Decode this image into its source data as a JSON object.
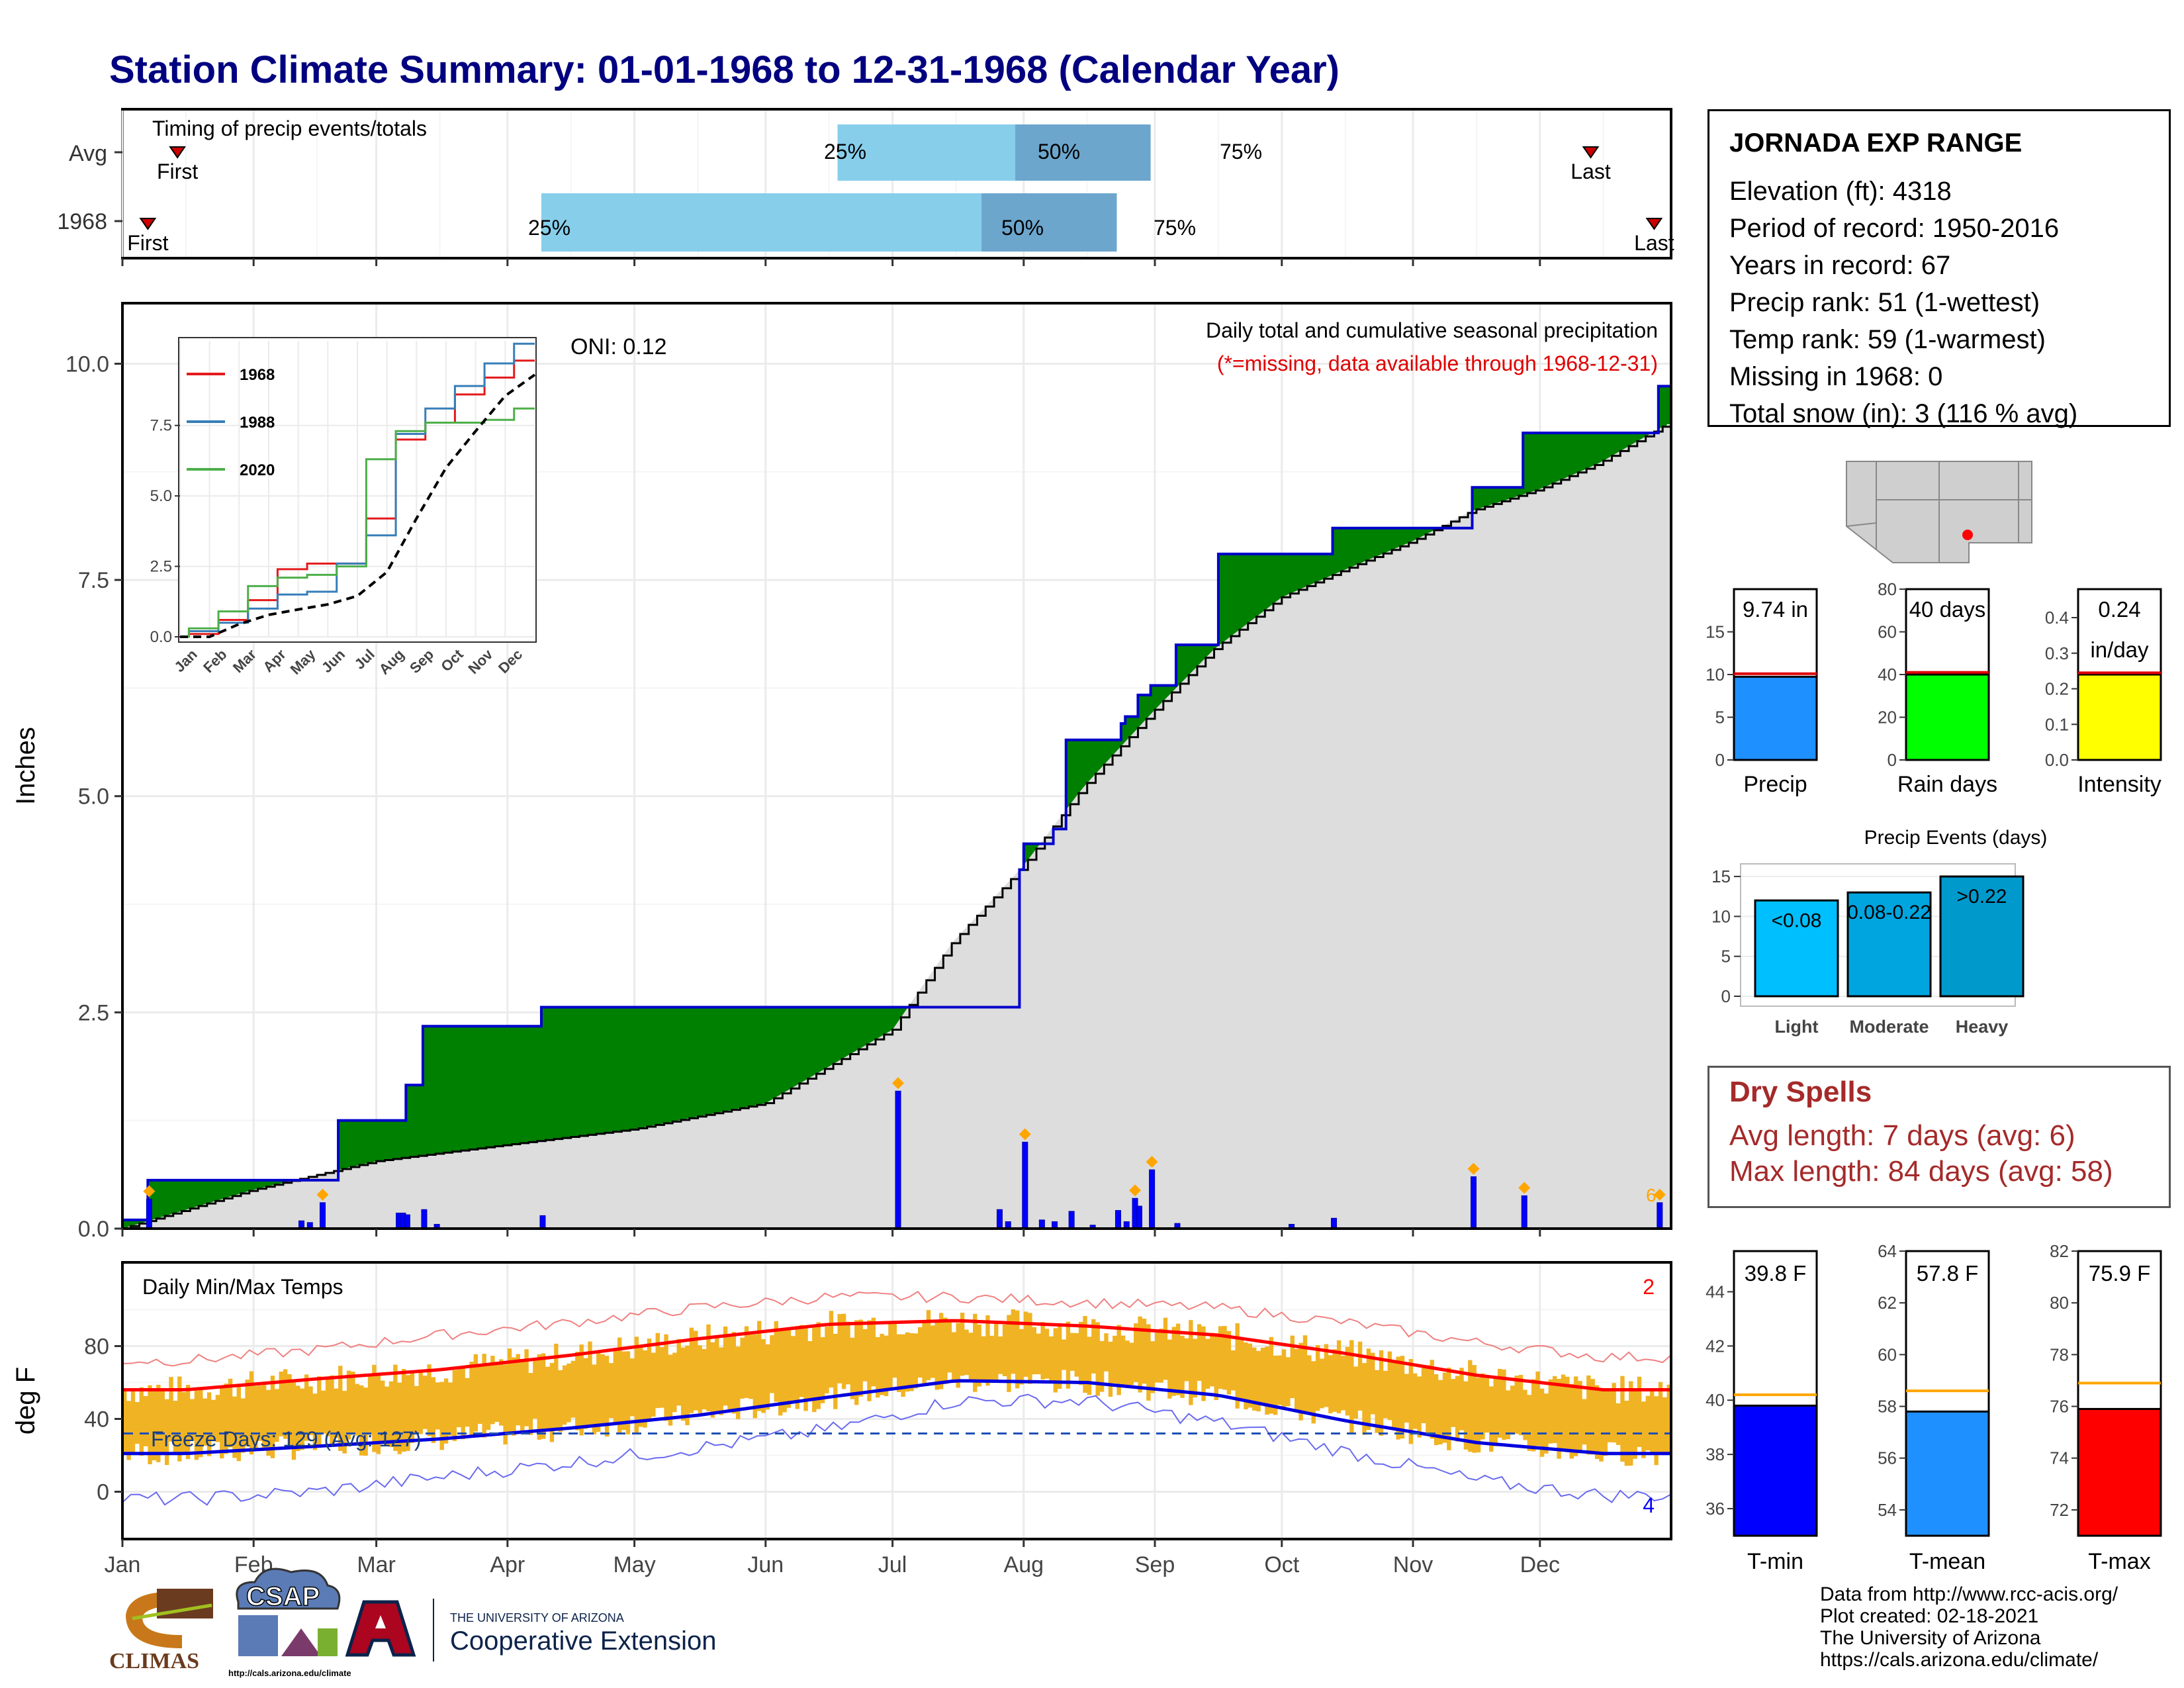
{
  "title": "Station Climate Summary: 01-01-1968 to 12-31-1968 (Calendar Year)",
  "months": [
    "Jan",
    "Feb",
    "Mar",
    "Apr",
    "May",
    "Jun",
    "Jul",
    "Aug",
    "Sep",
    "Oct",
    "Nov",
    "Dec"
  ],
  "timing": {
    "label": "Timing of precip events/totals",
    "rows": [
      "Avg",
      "1968"
    ],
    "first_label": "First",
    "last_label": "Last",
    "pct_labels": [
      "25%",
      "50%",
      "75%"
    ]
  },
  "precip_panel": {
    "ylabel": "Inches",
    "caption1": "Daily total and cumulative seasonal precipitation",
    "caption2": "(*=missing, data available through 1968-12-31)",
    "oni": "ONI: 0.12",
    "yticks": [
      "0.0",
      "2.5",
      "5.0",
      "7.5",
      "10.0"
    ],
    "corner_label": "6"
  },
  "inset": {
    "legend": [
      "1968",
      "1988",
      "2020"
    ],
    "yticks": [
      "0.0",
      "2.5",
      "5.0",
      "7.5"
    ],
    "months": [
      "Jan",
      "Feb",
      "Mar",
      "Apr",
      "May",
      "Jun",
      "Jul",
      "Aug",
      "Sep",
      "Oct",
      "Nov",
      "Dec"
    ]
  },
  "temp_panel": {
    "title": "Daily Min/Max Temps",
    "ylabel": "deg F",
    "yticks": [
      "0",
      "40",
      "80"
    ],
    "freeze": "Freeze Days: 129 (Avg: 127)",
    "count_hot": "2",
    "count_cold": "4"
  },
  "station": {
    "name": "JORNADA EXP RANGE",
    "lines": [
      "Elevation (ft): 4318",
      "Period of record: 1950-2016",
      "Years in record: 67",
      "Precip rank: 51 (1-wettest)",
      "Temp rank: 59 (1-warmest)",
      "Missing in 1968: 0",
      "Total snow (in): 3 (116 % avg)"
    ]
  },
  "summary_bars": [
    {
      "label": "Precip",
      "value_label": "9.74 in",
      "value": 9.74,
      "avg": 10.1,
      "ymax": 20,
      "yticks": [
        "0",
        "5",
        "10",
        "15"
      ],
      "tickvals": [
        0,
        5,
        10,
        15
      ],
      "color": "#1E90FF"
    },
    {
      "label": "Rain days",
      "value_label": "40 days",
      "value": 40,
      "avg": 41,
      "ymax": 80,
      "yticks": [
        "0",
        "20",
        "40",
        "60",
        "80"
      ],
      "tickvals": [
        0,
        20,
        40,
        60,
        80
      ],
      "color": "#00FF00"
    },
    {
      "label": "Intensity",
      "value_label": "0.24",
      "value_label2": "in/day",
      "value": 0.24,
      "avg": 0.245,
      "ymax": 0.48,
      "yticks": [
        "0.0",
        "0.1",
        "0.2",
        "0.3",
        "0.4"
      ],
      "tickvals": [
        0,
        0.1,
        0.2,
        0.3,
        0.4
      ],
      "color": "#FFFF00"
    }
  ],
  "events": {
    "title": "Precip Events (days)",
    "yticks": [
      "0",
      "5",
      "10",
      "15"
    ],
    "categories": [
      "Light",
      "Moderate",
      "Heavy"
    ],
    "labels": [
      "<0.08",
      "0.08-0.22",
      ">0.22"
    ],
    "values": [
      12,
      13,
      15
    ],
    "colors": [
      "#00BFFF",
      "#00A5E0",
      "#0099CC"
    ]
  },
  "dry_spells": {
    "title": "Dry Spells",
    "avg_length": "Avg length: 7 days (avg: 6)",
    "max_length": "Max length: 84 days (avg: 58)"
  },
  "temp_bars": [
    {
      "label": "T-min",
      "value_label": "39.8 F",
      "value": 39.8,
      "avg": 40.2,
      "ymin": 35,
      "ymax": 45.5,
      "yticks": [
        "36",
        "38",
        "40",
        "42",
        "44"
      ],
      "tickvals": [
        36,
        38,
        40,
        42,
        44
      ],
      "color": "#0000FF"
    },
    {
      "label": "T-mean",
      "value_label": "57.8 F",
      "value": 57.8,
      "avg": 58.6,
      "ymin": 53,
      "ymax": 64,
      "yticks": [
        "54",
        "56",
        "58",
        "60",
        "62",
        "64"
      ],
      "tickvals": [
        54,
        56,
        58,
        60,
        62,
        64
      ],
      "color": "#1E90FF"
    },
    {
      "label": "T-max",
      "value_label": "75.9 F",
      "value": 75.9,
      "avg": 76.9,
      "ymin": 71,
      "ymax": 82,
      "yticks": [
        "72",
        "74",
        "76",
        "78",
        "80",
        "82"
      ],
      "tickvals": [
        72,
        74,
        76,
        78,
        80,
        82
      ],
      "color": "#FF0000"
    }
  ],
  "footer": [
    "Data from http://www.rcc-acis.org/",
    "Plot created: 02-18-2021",
    "The University of Arizona",
    "https://cals.arizona.edu/climate/"
  ],
  "logos": {
    "climas": "CLIMAS",
    "csap": "CSAP",
    "csap_url": "http://cals.arizona.edu/climate",
    "ua_small": "THE UNIVERSITY OF ARIZONA",
    "ua_big": "Cooperative Extension"
  },
  "colors": {
    "title": "#000080",
    "green": "#008000",
    "brown": "#8B5A14",
    "gray": "#DDDDDD",
    "blue": "#0000FF",
    "orange": "#FFA500"
  },
  "chart_data": [
    {
      "type": "area",
      "title": "Daily total and cumulative seasonal precipitation",
      "ylabel": "Inches",
      "ylim": [
        0,
        10.7
      ],
      "series": [
        {
          "name": "1968",
          "x": [
            "01-01",
            "01-07",
            "02-12",
            "02-21",
            "03-06",
            "03-08",
            "03-12",
            "04-09",
            "07-02",
            "07-31",
            "08-01",
            "08-08",
            "08-11",
            "08-24",
            "08-25",
            "08-28",
            "08-31",
            "09-06",
            "09-16",
            "10-13",
            "11-15",
            "11-27",
            "12-29",
            "12-31"
          ],
          "values": [
            0.1,
            0.56,
            0.56,
            1.25,
            1.25,
            1.66,
            2.34,
            2.56,
            2.56,
            4.15,
            4.45,
            4.62,
            5.65,
            5.84,
            5.92,
            6.17,
            6.28,
            6.75,
            7.8,
            8.1,
            8.57,
            9.2,
            9.74,
            9.74
          ]
        },
        {
          "name": "average",
          "x": [
            "01-01",
            "02-01",
            "03-01",
            "04-01",
            "05-01",
            "06-01",
            "07-01",
            "07-15",
            "08-01",
            "08-15",
            "09-01",
            "09-15",
            "10-01",
            "10-15",
            "11-01",
            "11-15",
            "12-01",
            "12-15",
            "12-31"
          ],
          "values": [
            0,
            0.45,
            0.78,
            0.97,
            1.15,
            1.45,
            2.3,
            3.3,
            4.2,
            5.1,
            6.0,
            6.7,
            7.3,
            7.6,
            7.95,
            8.3,
            8.55,
            8.85,
            9.3
          ]
        }
      ],
      "daily_precip": {
        "x": [
          "01-07",
          "02-12",
          "02-14",
          "02-17",
          "03-06",
          "03-07",
          "03-08",
          "03-12",
          "03-15",
          "04-09",
          "07-02",
          "07-26",
          "07-28",
          "08-01",
          "08-05",
          "08-08",
          "08-12",
          "08-17",
          "08-23",
          "08-25",
          "08-27",
          "08-28",
          "08-31",
          "09-06",
          "10-03",
          "10-13",
          "11-15",
          "11-27",
          "12-29"
        ],
        "values": [
          0.34,
          0.09,
          0.07,
          0.3,
          0.18,
          0.18,
          0.16,
          0.22,
          0.05,
          0.15,
          1.59,
          0.22,
          0.08,
          1.0,
          0.1,
          0.08,
          0.2,
          0.04,
          0.21,
          0.08,
          0.35,
          0.26,
          0.68,
          0.06,
          0.05,
          0.12,
          0.6,
          0.38,
          0.3
        ]
      }
    },
    {
      "type": "line",
      "title": "Daily Min/Max Temps",
      "ylabel": "deg F",
      "x": [
        "Jan",
        "Feb",
        "Mar",
        "Apr",
        "May",
        "Jun",
        "Jul",
        "Aug",
        "Sep",
        "Oct",
        "Nov",
        "Dec"
      ],
      "series": [
        {
          "name": "avg max",
          "values": [
            56,
            62,
            67,
            75,
            84,
            92,
            94,
            91,
            86,
            76,
            64,
            56
          ]
        },
        {
          "name": "avg min",
          "values": [
            21,
            25,
            29,
            35,
            42,
            52,
            61,
            60,
            53,
            39,
            27,
            21
          ]
        },
        {
          "name": "record max",
          "values": [
            72,
            78,
            86,
            93,
            101,
            107,
            107,
            104,
            101,
            93,
            82,
            74
          ]
        },
        {
          "name": "record min",
          "values": [
            -4,
            0,
            8,
            16,
            24,
            34,
            50,
            50,
            38,
            22,
            6,
            -2
          ]
        }
      ],
      "freeze_threshold": 32
    },
    {
      "type": "line",
      "title": "",
      "legend": [
        "1968",
        "1988",
        "2020"
      ],
      "series": [
        {
          "name": "1968",
          "values": [
            0.1,
            0.6,
            1.3,
            2.4,
            2.6,
            2.6,
            4.2,
            7.0,
            7.6,
            8.6,
            9.2,
            9.8
          ]
        },
        {
          "name": "1988",
          "values": [
            0.2,
            0.5,
            1.0,
            1.5,
            1.6,
            2.6,
            3.6,
            7.2,
            8.1,
            8.9,
            9.7,
            10.4
          ]
        },
        {
          "name": "2020",
          "values": [
            0.3,
            0.9,
            1.8,
            2.1,
            2.2,
            2.5,
            6.3,
            7.3,
            7.6,
            7.6,
            7.7,
            8.1
          ]
        },
        {
          "name": "average",
          "values": [
            0,
            0.45,
            0.78,
            0.97,
            1.15,
            1.45,
            2.3,
            4.2,
            6.0,
            7.3,
            8.55,
            9.3
          ]
        }
      ],
      "ylim": [
        0,
        10.5
      ]
    },
    {
      "type": "bar",
      "title": "Precip Events (days)",
      "categories": [
        "Light",
        "Moderate",
        "Heavy"
      ],
      "values": [
        12,
        13,
        15
      ]
    }
  ]
}
